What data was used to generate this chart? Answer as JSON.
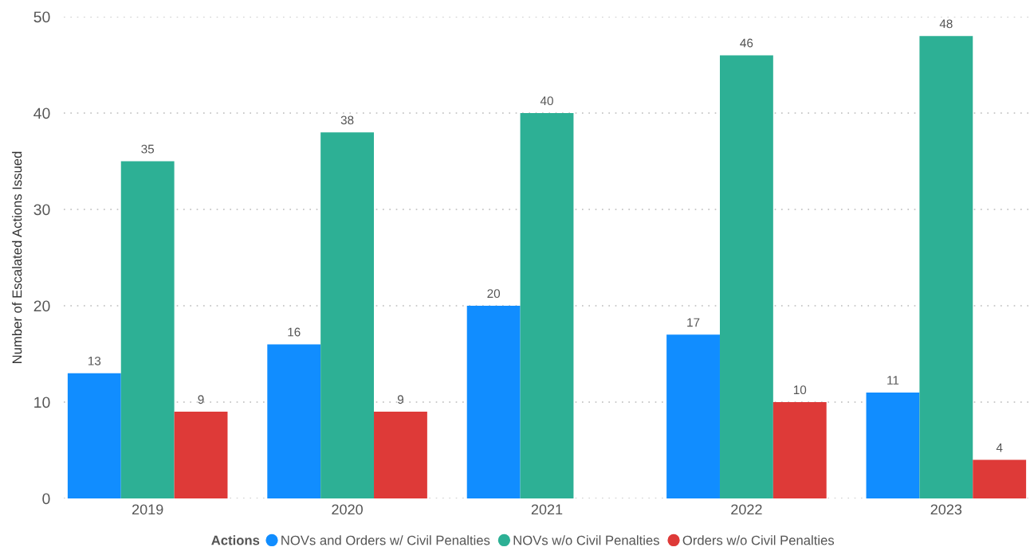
{
  "chart_data": {
    "type": "bar",
    "ylabel": "Number of Escalated Actions Issued",
    "legend_title": "Actions",
    "categories": [
      "2019",
      "2020",
      "2021",
      "2022",
      "2023"
    ],
    "series": [
      {
        "name": "NOVs and Orders w/ Civil Penalties",
        "color": "#118dff",
        "values": [
          13,
          16,
          20,
          17,
          11
        ]
      },
      {
        "name": "NOVs w/o Civil Penalties",
        "color": "#2db095",
        "values": [
          35,
          38,
          40,
          46,
          48
        ]
      },
      {
        "name": "Orders w/o Civil Penalties",
        "color": "#de3a38",
        "values": [
          9,
          9,
          null,
          10,
          4
        ]
      }
    ],
    "ylim": [
      0,
      50
    ],
    "yticks": [
      0,
      10,
      20,
      30,
      40,
      50
    ],
    "grid": "y",
    "legend": "bottom",
    "marker": "circle",
    "data_labels": true
  }
}
